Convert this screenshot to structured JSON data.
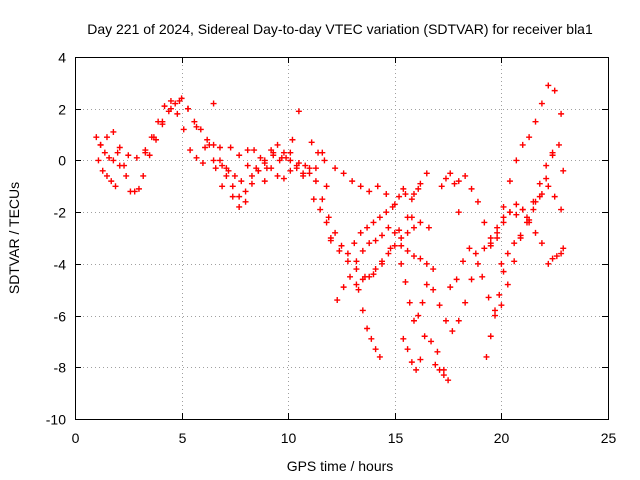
{
  "chart_data": {
    "type": "scatter",
    "title": "Day 221 of 2024, Sidereal Day-to-day VTEC variation (SDTVAR) for receiver bla1",
    "xlabel": "GPS time / hours",
    "ylabel": "SDTVAR / TECUs",
    "xlim": [
      0,
      25
    ],
    "ylim": [
      -10,
      4
    ],
    "xticks": [
      "0",
      "5",
      "10",
      "15",
      "20",
      "25"
    ],
    "yticks": [
      "4",
      "2",
      "0",
      "-2",
      "-4",
      "-6",
      "-8",
      "-10"
    ],
    "grid": true,
    "marker": "+",
    "color": "#ff0000",
    "series": [
      {
        "name": "s1",
        "x": [
          1.0,
          1.2,
          1.4,
          1.6,
          1.8,
          2.0,
          2.3,
          2.6,
          3.0,
          3.3,
          3.6,
          3.9,
          4.2,
          4.5,
          4.8,
          5.1,
          5.4,
          5.7,
          6.0,
          6.3,
          6.6,
          6.9,
          7.2,
          7.5,
          7.8,
          8.1,
          8.4,
          8.7,
          9.0,
          9.3,
          9.6,
          9.9,
          10.2,
          10.5
        ],
        "y": [
          0.9,
          0.6,
          0.3,
          0.1,
          0.0,
          0.3,
          -0.2,
          -1.2,
          -1.1,
          0.3,
          0.9,
          1.5,
          2.1,
          2.3,
          1.8,
          1.2,
          0.4,
          0.1,
          -0.1,
          0.6,
          -0.3,
          -1.0,
          -0.4,
          -0.6,
          -0.8,
          -0.2,
          0.4,
          0.1,
          -0.3,
          0.2,
          0.0,
          0.1,
          0.8,
          1.9
        ]
      },
      {
        "name": "s2",
        "x": [
          1.1,
          1.3,
          1.5,
          1.7,
          1.9,
          2.1,
          2.4,
          2.8,
          3.2,
          3.5,
          3.8,
          4.1,
          4.4,
          4.7,
          5.0,
          5.3,
          5.6,
          5.9,
          6.2,
          6.5,
          6.8,
          7.1,
          7.4,
          7.7,
          8.0,
          8.3,
          8.6,
          8.9,
          9.2,
          9.5,
          9.8,
          10.1,
          10.4,
          10.7
        ],
        "y": [
          0.0,
          -0.4,
          -0.6,
          -0.8,
          -1.0,
          -0.2,
          -0.6,
          -1.2,
          -0.6,
          0.2,
          0.8,
          1.4,
          1.9,
          2.2,
          2.4,
          2.0,
          1.5,
          1.2,
          0.8,
          2.2,
          0.5,
          -0.3,
          -1.4,
          -1.8,
          -1.2,
          -0.6,
          -0.4,
          -0.8,
          -0.3,
          -0.6,
          -0.7,
          -0.4,
          -0.3,
          -0.5
        ]
      },
      {
        "name": "s3",
        "x": [
          1.2,
          1.5,
          1.8,
          2.1,
          2.5,
          2.9,
          3.3,
          3.7,
          4.1,
          4.5,
          4.9,
          5.3,
          5.7,
          6.1,
          6.5,
          6.9,
          7.3,
          7.7,
          8.1,
          8.5,
          8.9,
          9.3,
          9.7,
          10.1,
          10.5,
          10.8,
          11.1,
          11.4,
          11.7
        ],
        "y": [
          0.6,
          0.9,
          1.1,
          0.5,
          0.2,
          0.1,
          0.4,
          0.9,
          1.5,
          2.0,
          2.3,
          2.0,
          1.3,
          0.5,
          0.0,
          -0.2,
          0.5,
          0.2,
          0.4,
          -0.3,
          -0.1,
          0.3,
          0.1,
          0.3,
          -0.1,
          -0.2,
          0.7,
          0.3,
          0.0
        ]
      },
      {
        "name": "s4",
        "x": [
          6.5,
          6.8,
          7.1,
          7.4,
          7.7,
          8.0,
          8.3,
          8.6,
          8.9,
          9.2,
          9.5,
          9.8,
          10.1,
          10.4,
          10.7,
          11.0,
          11.3,
          11.6
        ],
        "y": [
          0.6,
          0.0,
          -0.6,
          -1.0,
          -1.4,
          -1.6,
          -0.9,
          -0.4,
          0.0,
          0.4,
          0.6,
          0.3,
          0.0,
          -0.2,
          -0.6,
          -0.5,
          -0.3,
          0.3
        ]
      },
      {
        "name": "s5",
        "x": [
          11.0,
          11.3,
          11.6,
          11.9,
          12.2,
          12.5,
          12.8,
          13.1,
          13.4,
          13.7,
          14.0,
          14.3,
          14.6,
          14.9,
          15.2,
          15.5,
          15.8,
          16.1
        ],
        "y": [
          -0.3,
          -0.8,
          -1.5,
          -2.2,
          -2.8,
          -3.3,
          -3.6,
          -3.2,
          -2.8,
          -2.6,
          -2.4,
          -2.2,
          -2.0,
          -1.8,
          -1.4,
          -1.3,
          -1.5,
          -1.1
        ]
      },
      {
        "name": "s6",
        "x": [
          11.2,
          11.5,
          11.8,
          12.0
        ],
        "y": [
          -1.5,
          -1.9,
          -2.4,
          -3.1
        ]
      },
      {
        "name": "s7",
        "x": [
          11.8,
          12.2,
          12.6,
          13.0,
          13.4,
          13.8,
          14.2,
          14.6,
          15.0,
          15.4,
          15.8,
          16.2,
          16.6
        ],
        "y": [
          -1.0,
          -0.3,
          -0.5,
          -0.8,
          -1.0,
          -1.2,
          -1.0,
          -1.3,
          -1.7,
          -1.1,
          -2.2,
          -2.4,
          -2.6
        ]
      },
      {
        "name": "s8",
        "x": [
          12.3,
          12.6,
          12.9,
          13.2,
          13.5,
          13.8,
          14.1,
          14.4,
          14.7,
          15.0,
          15.3,
          15.6,
          15.9,
          16.2,
          16.5,
          16.8
        ],
        "y": [
          -5.4,
          -4.9,
          -4.5,
          -3.9,
          -3.5,
          -3.2,
          -3.1,
          -2.9,
          -2.6,
          -2.8,
          -3.3,
          -3.5,
          -3.7,
          -3.8,
          -4.0,
          -4.2
        ]
      },
      {
        "name": "s9",
        "x": [
          12.0,
          12.4,
          12.8,
          13.2,
          13.6,
          14.0,
          14.4,
          14.8,
          15.2,
          15.6,
          15.9,
          16.2,
          16.5
        ],
        "y": [
          -3.0,
          -3.5,
          -3.9,
          -4.2,
          -4.5,
          -4.4,
          -4.0,
          -3.4,
          -2.7,
          -2.2,
          -1.3,
          -0.9,
          -0.5
        ]
      },
      {
        "name": "s10",
        "x": [
          13.3,
          13.5,
          13.7,
          13.9,
          14.1,
          14.3
        ],
        "y": [
          -5.0,
          -5.8,
          -6.5,
          -6.9,
          -7.3,
          -7.6
        ]
      },
      {
        "name": "s11",
        "x": [
          13.2,
          13.5,
          13.8,
          14.1,
          14.4,
          14.7,
          15.0,
          15.3,
          15.6,
          15.9
        ],
        "y": [
          -4.8,
          -4.6,
          -4.5,
          -4.2,
          -3.9,
          -3.6,
          -3.3,
          -3.0,
          -2.8,
          -2.6
        ]
      },
      {
        "name": "s12",
        "x": [
          15.3,
          15.5,
          15.7,
          15.9,
          16.1,
          16.3,
          16.5
        ],
        "y": [
          -4.0,
          -4.7,
          -5.5,
          -6.2,
          -6.0,
          -5.5,
          -4.8
        ]
      },
      {
        "name": "s13",
        "x": [
          15.4,
          15.6,
          15.8,
          16.0,
          16.2
        ],
        "y": [
          -6.9,
          -7.3,
          -7.8,
          -8.1,
          -7.7
        ]
      },
      {
        "name": "s14",
        "x": [
          16.4,
          16.7,
          17.0,
          17.3
        ],
        "y": [
          -6.8,
          -7.0,
          -7.4,
          -8.1
        ]
      },
      {
        "name": "s15",
        "x": [
          16.9,
          17.1,
          17.3,
          17.5
        ],
        "y": [
          -7.9,
          -8.1,
          -8.3,
          -8.5
        ]
      },
      {
        "name": "s16",
        "x": [
          16.8,
          17.1,
          17.4,
          17.7,
          18.0,
          18.3,
          18.6,
          18.9,
          19.2,
          19.5,
          19.8,
          20.1,
          20.4,
          20.7,
          21.0,
          21.3,
          21.6,
          21.9,
          22.2,
          22.5,
          22.8
        ],
        "y": [
          -5.0,
          -5.6,
          -6.2,
          -6.6,
          -6.2,
          -5.5,
          -4.6,
          -4.0,
          -3.4,
          -3.0,
          -2.6,
          -2.2,
          -2.0,
          -2.1,
          -1.9,
          -2.4,
          -1.6,
          -1.3,
          -1.0,
          -1.4,
          -1.9
        ]
      },
      {
        "name": "s17",
        "x": [
          17.2,
          17.4,
          17.6,
          17.8,
          18.0
        ],
        "y": [
          -1.0,
          -0.7,
          -0.5,
          -0.9,
          -2.0
        ]
      },
      {
        "name": "s18",
        "x": [
          17.6,
          17.9,
          18.2,
          18.5,
          18.8,
          19.1,
          19.4,
          19.7,
          20.0,
          20.3,
          20.6,
          20.9,
          21.2,
          21.5,
          21.8,
          22.1,
          22.4,
          22.7,
          22.9
        ],
        "y": [
          -4.9,
          -4.6,
          -3.9,
          -3.4,
          -3.6,
          -4.5,
          -5.3,
          -5.8,
          -5.6,
          -4.8,
          -3.9,
          -3.0,
          -2.2,
          -1.6,
          -0.9,
          -0.2,
          0.3,
          0.6,
          -0.4
        ]
      },
      {
        "name": "s19",
        "x": [
          18.0,
          18.3,
          18.6,
          18.9,
          19.2,
          19.5,
          19.8,
          20.1,
          20.4,
          20.7,
          21.0,
          21.3,
          21.6,
          21.9,
          22.2,
          22.5,
          22.8
        ],
        "y": [
          -0.8,
          -0.6,
          -1.1,
          -1.6,
          -2.4,
          -3.3,
          -3.0,
          -1.8,
          -0.8,
          0.0,
          0.6,
          0.9,
          1.5,
          2.2,
          2.9,
          2.7,
          1.8
        ]
      },
      {
        "name": "s20",
        "x": [
          19.3,
          19.5,
          19.7,
          19.9,
          20.1
        ],
        "y": [
          -7.6,
          -6.8,
          -6.0,
          -5.2,
          -4.3
        ]
      },
      {
        "name": "s21",
        "x": [
          19.5,
          19.8,
          20.1,
          20.4,
          20.7,
          21.0,
          21.3,
          21.6,
          21.9
        ],
        "y": [
          -3.2,
          -2.8,
          -2.4,
          -2.0,
          -1.7,
          -1.9,
          -2.3,
          -2.8,
          -3.2
        ]
      },
      {
        "name": "s22",
        "x": [
          20.0,
          20.3,
          20.6,
          20.9,
          21.2,
          21.5,
          21.8,
          22.1,
          22.4
        ],
        "y": [
          -4.0,
          -3.6,
          -3.2,
          -2.9,
          -2.4,
          -1.9,
          -1.4,
          -0.7,
          0.2
        ]
      },
      {
        "name": "s23",
        "x": [
          22.2,
          22.4,
          22.6,
          22.8,
          22.9
        ],
        "y": [
          -4.0,
          -3.8,
          -3.7,
          -3.6,
          -3.4
        ]
      }
    ]
  }
}
